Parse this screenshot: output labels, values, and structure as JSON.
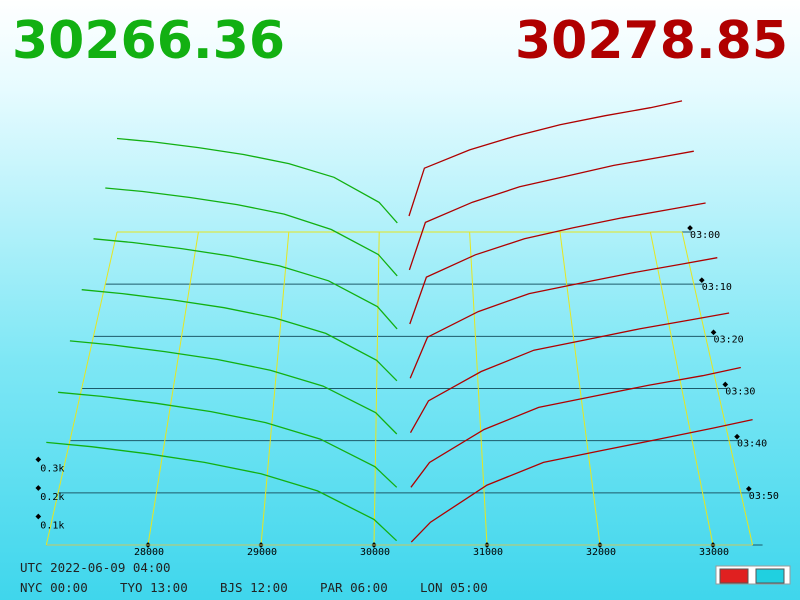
{
  "chart_data": {
    "type": "depth3d",
    "bid_price": 30266.36,
    "ask_price": 30278.85,
    "bid_color": "#12b012",
    "ask_color": "#b00000",
    "grid_color": "#e6e620",
    "bid_prices": [
      30200,
      30000,
      29500,
      29000,
      28500,
      28000,
      27500,
      27100
    ],
    "ask_prices": [
      30330,
      30500,
      31000,
      31500,
      32000,
      32500,
      33000,
      33350
    ],
    "snapshots": [
      {
        "minute": 0,
        "bids": [
          40,
          130,
          240,
          300,
          340,
          370,
          395,
          410
        ],
        "asks": [
          70,
          280,
          360,
          420,
          470,
          510,
          545,
          575
        ]
      },
      {
        "minute": 10,
        "bids": [
          35,
          125,
          230,
          295,
          335,
          365,
          390,
          405
        ],
        "asks": [
          60,
          260,
          345,
          410,
          455,
          500,
          535,
          560
        ]
      },
      {
        "minute": 20,
        "bids": [
          30,
          120,
          225,
          285,
          325,
          355,
          380,
          395
        ],
        "asks": [
          50,
          240,
          330,
          395,
          440,
          480,
          515,
          540
        ]
      },
      {
        "minute": 30,
        "bids": [
          30,
          110,
          215,
          275,
          315,
          345,
          370,
          385
        ],
        "asks": [
          40,
          200,
          300,
          370,
          410,
          450,
          485,
          510
        ]
      },
      {
        "minute": 40,
        "bids": [
          25,
          105,
          205,
          265,
          305,
          335,
          360,
          375
        ],
        "asks": [
          30,
          150,
          260,
          340,
          380,
          420,
          455,
          480
        ]
      },
      {
        "minute": 50,
        "bids": [
          20,
          95,
          195,
          255,
          295,
          325,
          350,
          365
        ],
        "asks": [
          20,
          110,
          230,
          310,
          350,
          390,
          425,
          455
        ]
      },
      {
        "minute": 60,
        "bids": [
          15,
          90,
          190,
          250,
          290,
          320,
          345,
          360
        ],
        "asks": [
          10,
          80,
          210,
          290,
          330,
          370,
          410,
          440
        ]
      }
    ],
    "xlim": [
      27100,
      33350
    ],
    "xticks": [
      28000,
      29000,
      30000,
      31000,
      32000,
      33000
    ],
    "tlim": [
      0,
      60
    ],
    "timeticks": [
      {
        "value": 0,
        "label": "03:00"
      },
      {
        "value": 10,
        "label": "03:10"
      },
      {
        "value": 20,
        "label": "03:20"
      },
      {
        "value": 30,
        "label": "03:30"
      },
      {
        "value": 40,
        "label": "03:40"
      },
      {
        "value": 50,
        "label": "03:50"
      }
    ],
    "zticks": [
      {
        "value": 100,
        "label": "0.1k"
      },
      {
        "value": 200,
        "label": "0.2k"
      },
      {
        "value": 300,
        "label": "0.3k"
      }
    ],
    "grid": true,
    "footer": {
      "utc": "UTC 2022-06-09 04:00",
      "zones": [
        "NYC 00:00",
        "TYO 13:00",
        "BJS 12:00",
        "PAR 06:00",
        "LON 05:00"
      ]
    }
  }
}
